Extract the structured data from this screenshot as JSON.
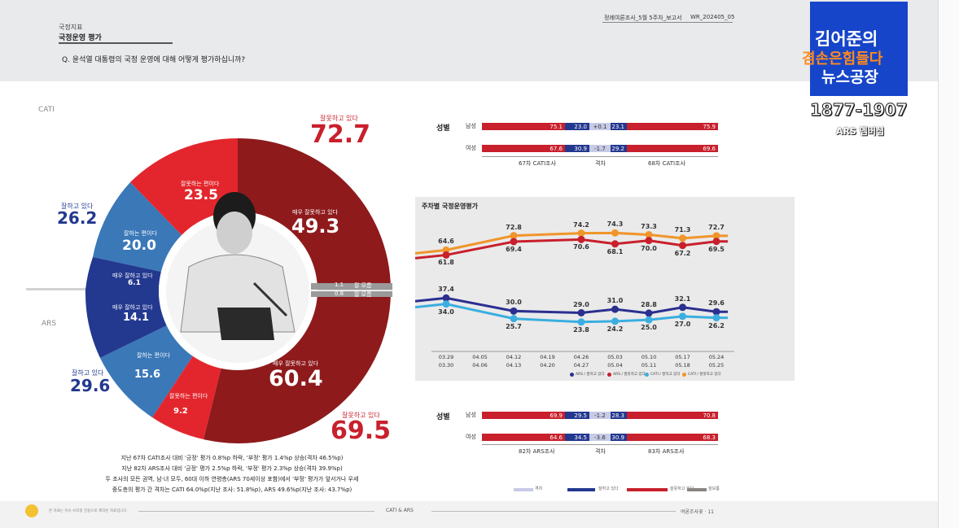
{
  "header": {
    "section": "국정지표",
    "title": "국정운영 평가",
    "question": "Q. 윤석열 대통령의 국정 운영에 대해 어떻게 평가하십니까?",
    "doc_id": "정례여론조사_5월 5주차_보고서",
    "doc_code": "WR_202405_05"
  },
  "logo": {
    "line1": "김어준의",
    "line2": "겸손은힘들다",
    "line3": "뉴스공장",
    "phone": "1877-1907",
    "sub": "ARS 멤버십"
  },
  "donut": {
    "cati_label": "CATI",
    "ars_label": "ARS",
    "cati_negative_label": "잘못하고 있다",
    "cati_negative_value": "72.7",
    "cati_somewhat_bad_label": "잘못하는 편이다",
    "cati_somewhat_bad_value": "23.5",
    "cati_very_bad_label": "매우 잘못하고 있다",
    "cati_very_bad_value": "49.3",
    "cati_positive_label": "잘하고 있다",
    "cati_positive_value": "26.2",
    "cati_somewhat_good_label": "잘하는 편이다",
    "cati_somewhat_good_value": "20.0",
    "cati_very_good_label": "매우 잘하고 있다",
    "cati_very_good_value": "6.1",
    "dk_label_1": "잘 모름",
    "dk_value_1": "1.1",
    "dk_label_2": "잘 모름",
    "dk_value_2": "0.8",
    "ars_very_good_label": "매우 잘하고 있다",
    "ars_very_good_value": "14.1",
    "ars_somewhat_good_label": "잘하는 편이다",
    "ars_somewhat_good_value": "15.6",
    "ars_positive_label": "잘하고 있다",
    "ars_positive_value": "29.6",
    "ars_somewhat_bad_label": "잘못하는 편이다",
    "ars_somewhat_bad_value": "9.2",
    "ars_very_bad_label": "매우 잘못하고 있다",
    "ars_very_bad_value": "60.4",
    "ars_negative_label": "잘못하고 있다",
    "ars_negative_value": "69.5"
  },
  "summary": [
    "지난 67차 CATI조사 대비 '긍정' 평가 0.8%p 하락, '부정' 평가 1.4%p 상승(격차 46.5%p)",
    "지난 82차 ARS조사 대비 '긍정' 평가 2.5%p 하락, '부정' 평가 2.3%p 상승(격차 39.9%p)",
    "두 조사의 모든 권역, 남·녀 모두, 60대 이하 연령층(ARS 70세이상 포함)에서 '부정' 평가가 앞서거나 우세",
    "중도층의 평가 간 격차는 CATI 64.0%p(지난 조사: 51.8%p), ARS 49.6%p(지난 조사: 43.7%p)"
  ],
  "gender_cati": {
    "heading": "성별",
    "rows": [
      {
        "label": "남성",
        "a_neg": "75.1",
        "a_pos": "23.0",
        "gap": "+0.1",
        "b_pos": "23.1",
        "b_neg": "75.9"
      },
      {
        "label": "여성",
        "a_neg": "67.6",
        "a_pos": "30.9",
        "gap": "-1.7",
        "b_pos": "29.2",
        "b_neg": "69.6"
      }
    ],
    "foot_left": "67차 CATI조사",
    "foot_mid": "격차",
    "foot_right": "68차 CATI조사"
  },
  "gender_ars": {
    "heading": "성별",
    "rows": [
      {
        "label": "남성",
        "a_neg": "69.9",
        "a_pos": "29.5",
        "gap": "-1.2",
        "b_pos": "28.3",
        "b_neg": "70.8"
      },
      {
        "label": "여성",
        "a_neg": "64.6",
        "a_pos": "34.5",
        "gap": "-3.6",
        "b_pos": "30.9",
        "b_neg": "68.3"
      }
    ],
    "foot_left": "82차 ARS조사",
    "foot_mid": "격차",
    "foot_right": "83차 ARS조사"
  },
  "chart_data": {
    "type": "line",
    "title": "주차별 국정운영평가",
    "x": [
      "03.29\n03.30",
      "04.05\n04.06",
      "04.12\n04.13",
      "04.19\n04.20",
      "04.26\n04.27",
      "05.03\n05.04",
      "05.10\n05.11",
      "05.17\n05.18",
      "05.24\n05.25"
    ],
    "series": [
      {
        "name": "CATI 잘못하고 있다",
        "color": "#f0952a",
        "values": [
          64.6,
          null,
          72.8,
          null,
          74.2,
          74.3,
          73.3,
          71.3,
          72.7
        ]
      },
      {
        "name": "ARS 잘못하고 있다",
        "color": "#c8202c",
        "values": [
          61.8,
          null,
          69.4,
          null,
          70.6,
          68.1,
          70.0,
          67.2,
          69.5
        ]
      },
      {
        "name": "ARS 잘하고 있다",
        "color": "#2b2f8f",
        "values": [
          37.4,
          null,
          30.0,
          null,
          29.0,
          31.0,
          28.8,
          32.1,
          29.6
        ]
      },
      {
        "name": "CATI 잘하고 있다",
        "color": "#3aaee0",
        "values": [
          34.0,
          null,
          25.7,
          null,
          23.8,
          24.2,
          25.0,
          27.0,
          26.2
        ]
      }
    ],
    "legend": [
      "ARS / 잘하고 있다",
      "ARS / 잘못하고 있다",
      "CATI / 잘하고 있다",
      "CATI / 잘못하고 있다"
    ]
  },
  "bottom_legend": [
    "격차",
    "잘하고 있다",
    "잘못하고 있다",
    "잘모름"
  ],
  "footer": {
    "left": "본 자료는 이슈 브리핑 전용으로 제작된 자료입니다",
    "center": "CATI & ARS",
    "right": "여론조사꽃 · 11"
  },
  "colors": {
    "darkred": "#8e1a1c",
    "red": "#e3262d",
    "blue": "#23388f",
    "midblue": "#3a78b8",
    "grey": "#7a7a7a"
  }
}
